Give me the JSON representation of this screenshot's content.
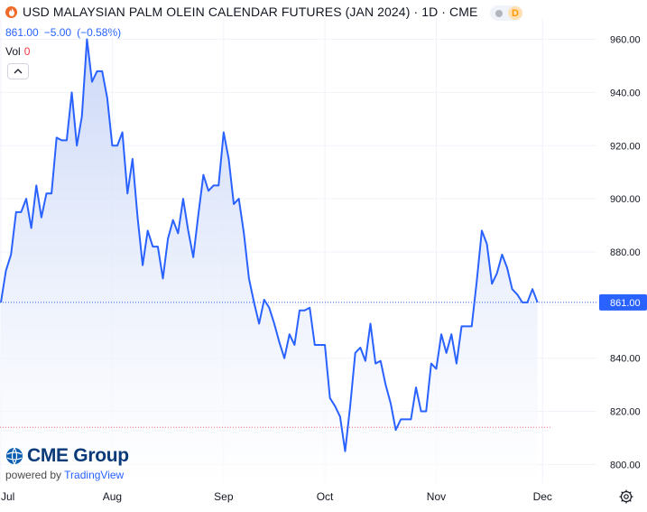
{
  "header": {
    "title": "USD MALAYSIAN PALM OLEIN CALENDAR FUTURES (JAN 2024) · 1D · CME",
    "price": "861.00",
    "change": "−5.00",
    "change_pct": "(−0.58%)",
    "vol_label": "Vol",
    "vol_value": "0",
    "interval_badge": "D",
    "collapse_icon": "chevron-up-icon"
  },
  "branding": {
    "logo_text": "CME Group",
    "powered_by": "powered by",
    "tradingview": "TradingView"
  },
  "colors": {
    "line": "#2962ff",
    "area_top": "#c9d6f7",
    "area_bottom": "#ffffff",
    "grid": "#f0f3fa",
    "last_price_label_bg": "#2962ff",
    "reference_line": "#f23645"
  },
  "chart_data": {
    "type": "area",
    "y_unit": "USD",
    "ylim": [
      793,
      968
    ],
    "y_ticks": [
      "960.00",
      "940.00",
      "920.00",
      "900.00",
      "880.00",
      "860.00",
      "840.00",
      "820.00",
      "800.00"
    ],
    "y_tick_values": [
      960,
      940,
      920,
      900,
      880,
      860,
      840,
      820,
      800
    ],
    "x_ticks": [
      {
        "label": "Jul",
        "index": 0
      },
      {
        "label": "Aug",
        "index": 22
      },
      {
        "label": "Sep",
        "index": 44
      },
      {
        "label": "Oct",
        "index": 64
      },
      {
        "label": "Nov",
        "index": 86
      },
      {
        "label": "Dec",
        "index": 107
      }
    ],
    "last_price_label": "861.00",
    "last_price": 861,
    "reference_level": 814,
    "grid": true,
    "series": [
      {
        "values": [
          861,
          873,
          879,
          895,
          895,
          900,
          889,
          905,
          893,
          902,
          902,
          923,
          922,
          922,
          940,
          920,
          931,
          960,
          944,
          948,
          948,
          938,
          920,
          920,
          925,
          902,
          915,
          893,
          875,
          888,
          882,
          882,
          870,
          885,
          892,
          887,
          900,
          888,
          878,
          894,
          909,
          903,
          905,
          905,
          925,
          915,
          898,
          900,
          887,
          870,
          861,
          853,
          862,
          859,
          853,
          846,
          840,
          849,
          845,
          858,
          858,
          859,
          845,
          845,
          845,
          825,
          822,
          818,
          805,
          822,
          842,
          844,
          839,
          853,
          838,
          839,
          830,
          823,
          813,
          817,
          817,
          817,
          829,
          820,
          820,
          838,
          836,
          849,
          842,
          849,
          838,
          852,
          852,
          852,
          869,
          888,
          883,
          868,
          872,
          879,
          874,
          866,
          864,
          861,
          861,
          866,
          861
        ]
      }
    ]
  }
}
